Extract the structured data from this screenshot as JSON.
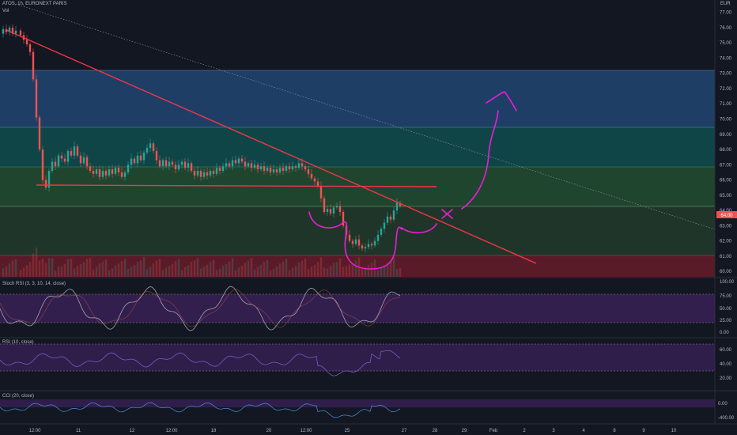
{
  "header": {
    "symbol_line": "ATOS, 1h, EURONEXT PARIS",
    "volume_label": "Vol",
    "currency": "EUR"
  },
  "price_tag": "64.00",
  "stoch_header": "Stoch RSI (3, 3, 10, 14, close)",
  "rsi_header": "RSI (10, close)",
  "cci_header": "CCI (20, close)",
  "colors": {
    "background": "#131722",
    "up": "#26a69a",
    "down": "#ef5350",
    "trendline": "#f23645",
    "drawing": "#e91ed6",
    "zone_blue": "#2a5f9e",
    "zone_teal": "#0f6b66",
    "zone_green": "#2b6b3a",
    "zone_red": "#8b1e2e",
    "osc_band": "#5b2a86"
  },
  "chart_data": [
    {
      "type": "candlestick",
      "title": "ATOS, 1h, EURONEXT PARIS",
      "ylabel": "EUR",
      "ylim": [
        59.8,
        77.8
      ],
      "y_ticks": [
        "77.00",
        "76.00",
        "75.00",
        "74.00",
        "73.00",
        "72.00",
        "71.00",
        "70.00",
        "69.00",
        "68.00",
        "67.00",
        "66.00",
        "65.00",
        "64.00",
        "63.00",
        "62.00",
        "61.00",
        "60.00"
      ],
      "x_tick_labels": [
        "12:00",
        "11",
        "12",
        "12:00",
        "18",
        "20",
        "12:00",
        "25",
        "27",
        "28",
        "29",
        "Feb",
        "2",
        "3",
        "4",
        "8",
        "9",
        "10"
      ],
      "price_path": [
        [
          0,
          75.6
        ],
        [
          4,
          75.9
        ],
        [
          8,
          75.7
        ],
        [
          12,
          76.0
        ],
        [
          16,
          75.6
        ],
        [
          20,
          75.8
        ],
        [
          26,
          75.5
        ],
        [
          30,
          75.2
        ],
        [
          34,
          74.9
        ],
        [
          38,
          74.4
        ],
        [
          42,
          72.6
        ],
        [
          46,
          70.1
        ],
        [
          50,
          68.0
        ],
        [
          54,
          66.0
        ],
        [
          58,
          65.5
        ],
        [
          62,
          66.6
        ],
        [
          66,
          67.2
        ],
        [
          70,
          66.9
        ],
        [
          74,
          67.6
        ],
        [
          78,
          67.4
        ],
        [
          82,
          67.2
        ],
        [
          86,
          67.9
        ],
        [
          90,
          67.6
        ],
        [
          94,
          68.2
        ],
        [
          98,
          67.6
        ],
        [
          102,
          67.1
        ],
        [
          106,
          67.5
        ],
        [
          110,
          66.9
        ],
        [
          114,
          66.6
        ],
        [
          118,
          66.4
        ],
        [
          122,
          66.7
        ],
        [
          126,
          66.2
        ],
        [
          130,
          66.6
        ],
        [
          134,
          66.3
        ],
        [
          138,
          66.7
        ],
        [
          142,
          66.4
        ],
        [
          146,
          66.8
        ],
        [
          150,
          66.5
        ],
        [
          154,
          66.2
        ],
        [
          158,
          66.5
        ],
        [
          162,
          67.0
        ],
        [
          166,
          67.4
        ],
        [
          170,
          67.1
        ],
        [
          174,
          67.6
        ],
        [
          178,
          67.3
        ],
        [
          182,
          67.8
        ],
        [
          186,
          68.1
        ],
        [
          190,
          68.4
        ],
        [
          194,
          67.9
        ],
        [
          198,
          67.3
        ],
        [
          202,
          66.9
        ],
        [
          206,
          67.3
        ],
        [
          210,
          66.9
        ],
        [
          214,
          67.2
        ],
        [
          218,
          67.0
        ],
        [
          222,
          66.7
        ],
        [
          226,
          67.0
        ],
        [
          230,
          67.2
        ],
        [
          234,
          66.8
        ],
        [
          238,
          67.1
        ],
        [
          242,
          66.6
        ],
        [
          246,
          66.3
        ],
        [
          250,
          66.6
        ],
        [
          254,
          66.2
        ],
        [
          258,
          66.5
        ],
        [
          262,
          66.3
        ],
        [
          266,
          66.6
        ],
        [
          270,
          66.4
        ],
        [
          274,
          66.8
        ],
        [
          278,
          66.6
        ],
        [
          282,
          66.9
        ],
        [
          286,
          67.1
        ],
        [
          290,
          66.9
        ],
        [
          294,
          67.3
        ],
        [
          298,
          67.1
        ],
        [
          302,
          67.4
        ],
        [
          306,
          67.2
        ],
        [
          310,
          66.9
        ],
        [
          314,
          67.1
        ],
        [
          318,
          66.8
        ],
        [
          322,
          67.0
        ],
        [
          326,
          66.7
        ],
        [
          330,
          66.9
        ],
        [
          334,
          66.6
        ],
        [
          338,
          66.8
        ],
        [
          342,
          66.5
        ],
        [
          346,
          66.7
        ],
        [
          350,
          66.5
        ],
        [
          354,
          66.8
        ],
        [
          358,
          66.6
        ],
        [
          362,
          66.9
        ],
        [
          366,
          66.7
        ],
        [
          370,
          66.9
        ],
        [
          374,
          66.8
        ],
        [
          378,
          67.1
        ],
        [
          382,
          66.9
        ],
        [
          386,
          66.7
        ],
        [
          390,
          66.4
        ],
        [
          394,
          66.1
        ],
        [
          398,
          65.9
        ],
        [
          402,
          65.6
        ],
        [
          406,
          64.8
        ],
        [
          410,
          63.9
        ],
        [
          414,
          64.1
        ],
        [
          418,
          63.8
        ],
        [
          422,
          64.2
        ],
        [
          426,
          64.3
        ],
        [
          430,
          63.9
        ],
        [
          434,
          63.0
        ],
        [
          438,
          62.4
        ],
        [
          442,
          62.0
        ],
        [
          446,
          61.8
        ],
        [
          450,
          62.1
        ],
        [
          454,
          61.7
        ],
        [
          458,
          61.5
        ],
        [
          462,
          61.6
        ],
        [
          466,
          61.8
        ],
        [
          470,
          61.7
        ],
        [
          474,
          62.0
        ],
        [
          478,
          62.4
        ],
        [
          482,
          62.8
        ],
        [
          486,
          63.2
        ],
        [
          490,
          63.6
        ],
        [
          494,
          63.4
        ],
        [
          498,
          64.0
        ],
        [
          502,
          64.5
        ],
        [
          506,
          64.3
        ]
      ]
    },
    {
      "type": "line",
      "title": "Stoch RSI (3, 3, 10, 14, close)",
      "ylim": [
        0,
        100
      ],
      "y_ticks": [
        "100.00",
        "75.00",
        "50.00",
        "25.00",
        "0.00"
      ]
    },
    {
      "type": "line",
      "title": "RSI (10, close)",
      "ylim": [
        10,
        75
      ],
      "y_ticks": [
        "60.00",
        "40.00",
        "20.00"
      ]
    },
    {
      "type": "line",
      "title": "CCI (20, close)",
      "ylim": [
        -450,
        50
      ],
      "y_ticks": [
        "0.00",
        "-400.00"
      ]
    }
  ]
}
